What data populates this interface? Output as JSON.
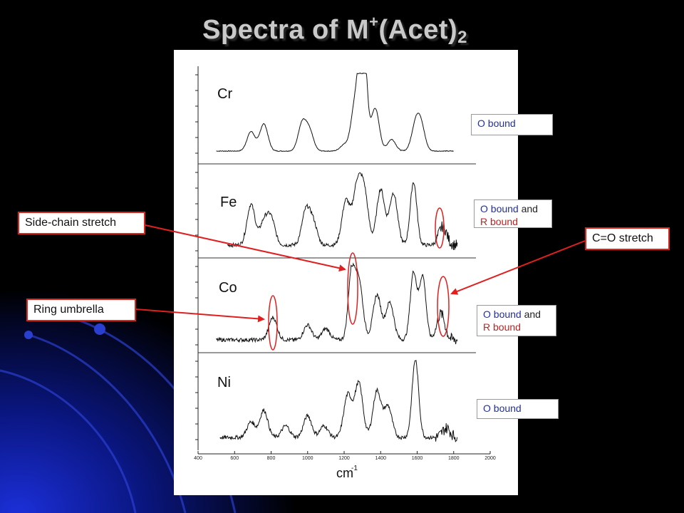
{
  "title": {
    "main": "Spectra of M",
    "sup": "+",
    "mid": "(Acet)",
    "sub": "2"
  },
  "colors": {
    "background": "#000000",
    "title": "#c9c9c9",
    "callout_border": "#d9261c",
    "arrow": "#e02020",
    "ellipse": "#e02020",
    "o_bound": "#1f2fa8",
    "r_bound": "#c51f1f"
  },
  "notes": [
    {
      "o_text": "O bound",
      "and_text": "",
      "r_text": ""
    },
    {
      "o_text": "O bound",
      "and_text": " and",
      "r_text": "R bound"
    },
    {
      "o_text": "O bound",
      "and_text": " and",
      "r_text": "R bound"
    },
    {
      "o_text": "O bound",
      "and_text": "",
      "r_text": ""
    }
  ],
  "callouts": {
    "side_chain": "Side-chain stretch",
    "ring_umbrella": "Ring umbrella",
    "co_stretch": "C=O stretch"
  },
  "chart_data": {
    "type": "line",
    "panels": [
      "Cr",
      "Fe",
      "Co",
      "Ni"
    ],
    "xlabel": "cm",
    "xlabel_sup": "-1",
    "xlim": [
      400,
      2000
    ],
    "x_ticks": [
      400,
      600,
      800,
      1000,
      1200,
      1400,
      1600,
      1800,
      2000
    ],
    "series": [
      {
        "name": "Cr",
        "x_range": [
          500,
          1800
        ],
        "peaks": [
          [
            690,
            0.25
          ],
          [
            760,
            0.35
          ],
          [
            970,
            0.35
          ],
          [
            1010,
            0.25
          ],
          [
            1200,
            0.08
          ],
          [
            1260,
            0.6
          ],
          [
            1295,
            1.0
          ],
          [
            1310,
            0.85
          ],
          [
            1370,
            0.55
          ],
          [
            1460,
            0.15
          ],
          [
            1590,
            0.3
          ],
          [
            1620,
            0.32
          ]
        ]
      },
      {
        "name": "Fe",
        "x_range": [
          560,
          1820
        ],
        "peaks": [
          [
            690,
            0.55
          ],
          [
            760,
            0.3
          ],
          [
            800,
            0.35
          ],
          [
            990,
            0.45
          ],
          [
            1030,
            0.3
          ],
          [
            1210,
            0.6
          ],
          [
            1270,
            0.75
          ],
          [
            1310,
            0.7
          ],
          [
            1400,
            0.75
          ],
          [
            1470,
            0.7
          ],
          [
            1580,
            0.85
          ],
          [
            1740,
            0.25
          ]
        ]
      },
      {
        "name": "Co",
        "x_range": [
          500,
          1820
        ],
        "peaks": [
          [
            810,
            0.3
          ],
          [
            1000,
            0.2
          ],
          [
            1100,
            0.15
          ],
          [
            1240,
            0.85
          ],
          [
            1280,
            0.8
          ],
          [
            1380,
            0.6
          ],
          [
            1450,
            0.5
          ],
          [
            1580,
            0.9
          ],
          [
            1630,
            0.85
          ],
          [
            1730,
            0.35
          ]
        ]
      },
      {
        "name": "Ni",
        "x_range": [
          520,
          1820
        ],
        "peaks": [
          [
            690,
            0.2
          ],
          [
            760,
            0.35
          ],
          [
            880,
            0.15
          ],
          [
            1000,
            0.28
          ],
          [
            1090,
            0.15
          ],
          [
            1220,
            0.55
          ],
          [
            1280,
            0.7
          ],
          [
            1380,
            0.6
          ],
          [
            1440,
            0.4
          ],
          [
            1590,
            1.0
          ],
          [
            1760,
            0.12
          ]
        ]
      }
    ],
    "annotations": [
      "Side-chain stretch",
      "Ring umbrella",
      "C=O stretch"
    ]
  }
}
